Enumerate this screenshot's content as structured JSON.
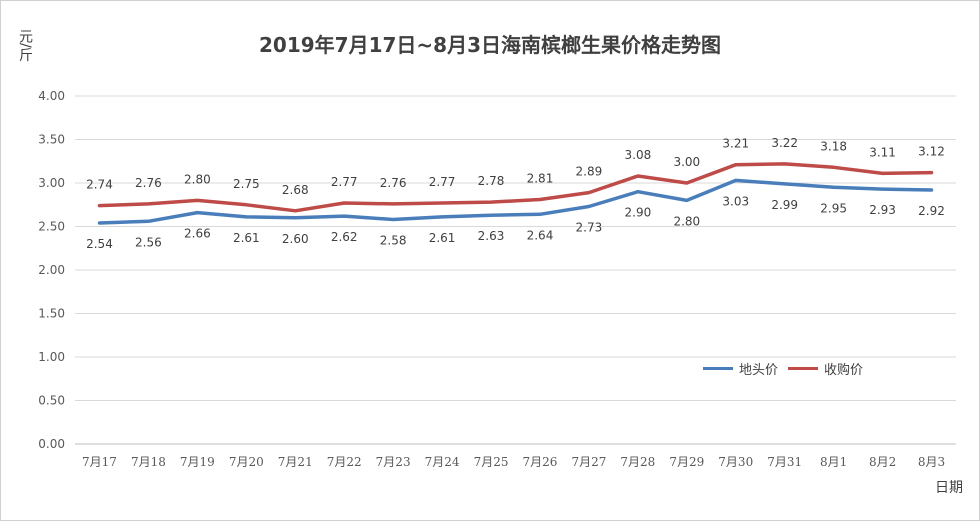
{
  "chart_data": {
    "type": "line",
    "title": "2019年7月17日~8月3日海南槟榔生果价格走势图",
    "ylabel": "元/斤",
    "xlabel": "日期",
    "ylim": [
      0,
      4
    ],
    "yticks": [
      "0.00",
      "0.50",
      "1.00",
      "1.50",
      "2.00",
      "2.50",
      "3.00",
      "3.50",
      "4.00"
    ],
    "grid": true,
    "legend_position": "right",
    "categories": [
      "7月17",
      "7月18",
      "7月19",
      "7月20",
      "7月21",
      "7月22",
      "7月23",
      "7月24",
      "7月25",
      "7月26",
      "7月27",
      "7月28",
      "7月29",
      "7月30",
      "7月31",
      "8月1",
      "8月2",
      "8月3"
    ],
    "series": [
      {
        "name": "地头价",
        "color": "#4a7ebb",
        "values": [
          2.54,
          2.56,
          2.66,
          2.61,
          2.6,
          2.62,
          2.58,
          2.61,
          2.63,
          2.64,
          2.73,
          2.9,
          2.8,
          3.03,
          2.99,
          2.95,
          2.93,
          2.92
        ],
        "labels": [
          "2.54",
          "2.56",
          "2.66",
          "2.61",
          "2.60",
          "2.62",
          "2.58",
          "2.61",
          "2.63",
          "2.64",
          "2.73",
          "2.90",
          "2.80",
          "3.03",
          "2.99",
          "2.95",
          "2.93",
          "2.92"
        ]
      },
      {
        "name": "收购价",
        "color": "#be4b48",
        "values": [
          2.74,
          2.76,
          2.8,
          2.75,
          2.68,
          2.77,
          2.76,
          2.77,
          2.78,
          2.81,
          2.89,
          3.08,
          3.0,
          3.21,
          3.22,
          3.18,
          3.11,
          3.12
        ],
        "labels": [
          "2.74",
          "2.76",
          "2.80",
          "2.75",
          "2.68",
          "2.77",
          "2.76",
          "2.77",
          "2.78",
          "2.81",
          "2.89",
          "3.08",
          "3.00",
          "3.21",
          "3.22",
          "3.18",
          "3.11",
          "3.12"
        ]
      }
    ]
  }
}
